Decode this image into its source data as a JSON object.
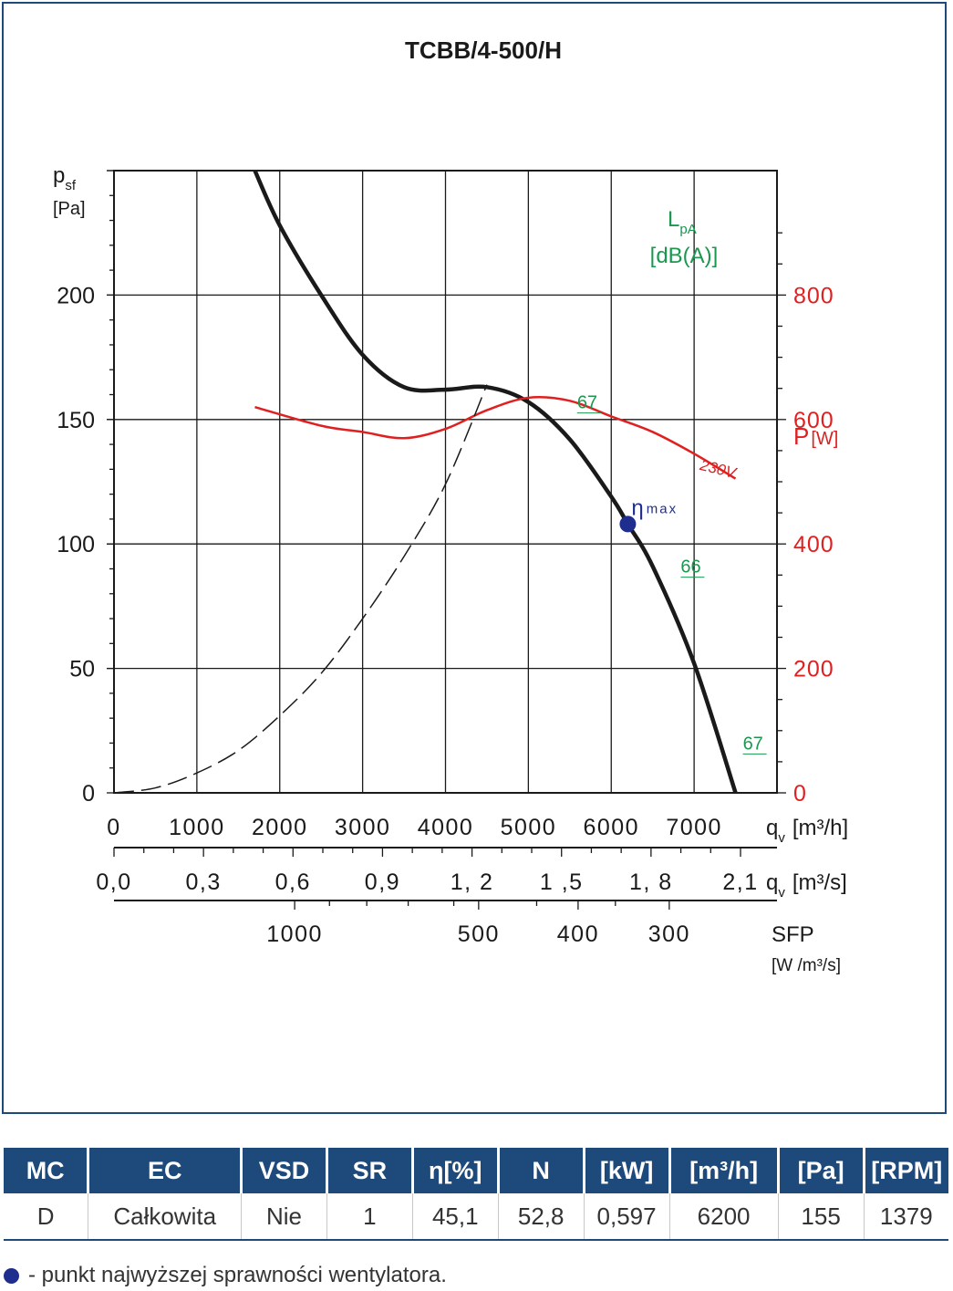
{
  "chart_data": {
    "type": "line",
    "title": "TCBB/4-500/H",
    "xlabel": "q",
    "xlabel_sub": "v",
    "xlabel_unit": "[m³/h]",
    "xlim": [
      0,
      8000
    ],
    "x_ticks": [
      "0",
      "1000",
      "2000",
      "3000",
      "4000",
      "5000",
      "6000",
      "7000"
    ],
    "x2_label": "q",
    "x2_label_sub": "v",
    "x2_unit": "[m³/s]",
    "x2_ticks": [
      "0,0",
      "0,3",
      "0,6",
      "0,9",
      "1, 2",
      "1 ,5",
      "1, 8",
      "2,1"
    ],
    "sfp_label": "SFP",
    "sfp_unit": "[W /m³/s]",
    "sfp_ticks": [
      "1000",
      "500",
      "400",
      "300"
    ],
    "ylabel": "p",
    "ylabel_sub": "sf",
    "ylabel_unit": "[Pa]",
    "ylim": [
      0,
      250
    ],
    "y_ticks": [
      "0",
      "50",
      "100",
      "150",
      "200"
    ],
    "y2_label": "P",
    "y2_unit": "[W]",
    "y2lim": [
      0,
      1000
    ],
    "y2_ticks": [
      "0",
      "200",
      "400",
      "600",
      "800"
    ],
    "noise_label": "L",
    "noise_label_sub": "pA",
    "noise_unit": "[dB(A)]",
    "grid": true,
    "series": [
      {
        "name": "",
        "color": "#1a1a1a",
        "axis": "left",
        "x": [
          1700,
          2000,
          2500,
          3000,
          3500,
          4000,
          4500,
          5000,
          5500,
          6000,
          6200,
          6500,
          7000,
          7500
        ],
        "y": [
          250,
          228,
          200,
          176,
          163,
          162,
          163,
          157,
          142,
          119,
          108,
          91,
          52,
          0
        ]
      },
      {
        "name": "230V",
        "color": "#e02020",
        "axis": "right",
        "x": [
          1700,
          2500,
          3000,
          3500,
          4000,
          4500,
          5000,
          5500,
          6000,
          6500,
          7000,
          7500
        ],
        "y": [
          620,
          590,
          580,
          570,
          585,
          615,
          635,
          630,
          605,
          580,
          545,
          505
        ]
      },
      {
        "name": "",
        "color": "#1a1a1a",
        "axis": "left",
        "style": "dashed",
        "x": [
          0,
          500,
          1000,
          1500,
          2000,
          2500,
          3000,
          3500,
          4000,
          4500
        ],
        "y": [
          0,
          2,
          8,
          17,
          31,
          48,
          70,
          95,
          124,
          164
        ]
      }
    ],
    "noise_labels": [
      {
        "text": "67",
        "x": 5500,
        "y": 153
      },
      {
        "text": "66",
        "x": 6750,
        "y": 87
      },
      {
        "text": "67",
        "x": 7500,
        "y": 16
      }
    ],
    "eta_max": {
      "label": "η",
      "label_sub": "max",
      "x": 6200,
      "y": 108
    }
  },
  "table": {
    "headers": [
      "MC",
      "EC",
      "VSD",
      "SR",
      "η[%]",
      "N",
      "[kW]",
      "[m³/h]",
      "[Pa]",
      "[RPM]"
    ],
    "rows": [
      [
        "D",
        "Całkowita",
        "Nie",
        "1",
        "45,1",
        "52,8",
        "0,597",
        "6200",
        "155",
        "1379"
      ]
    ]
  },
  "footnote": "- punkt najwyższej sprawności wentylatora.",
  "colors": {
    "header_bg": "#1d4a7a",
    "power_curve": "#e02020",
    "noise_text": "#1a9850",
    "eta_marker": "#1f2e8e"
  }
}
